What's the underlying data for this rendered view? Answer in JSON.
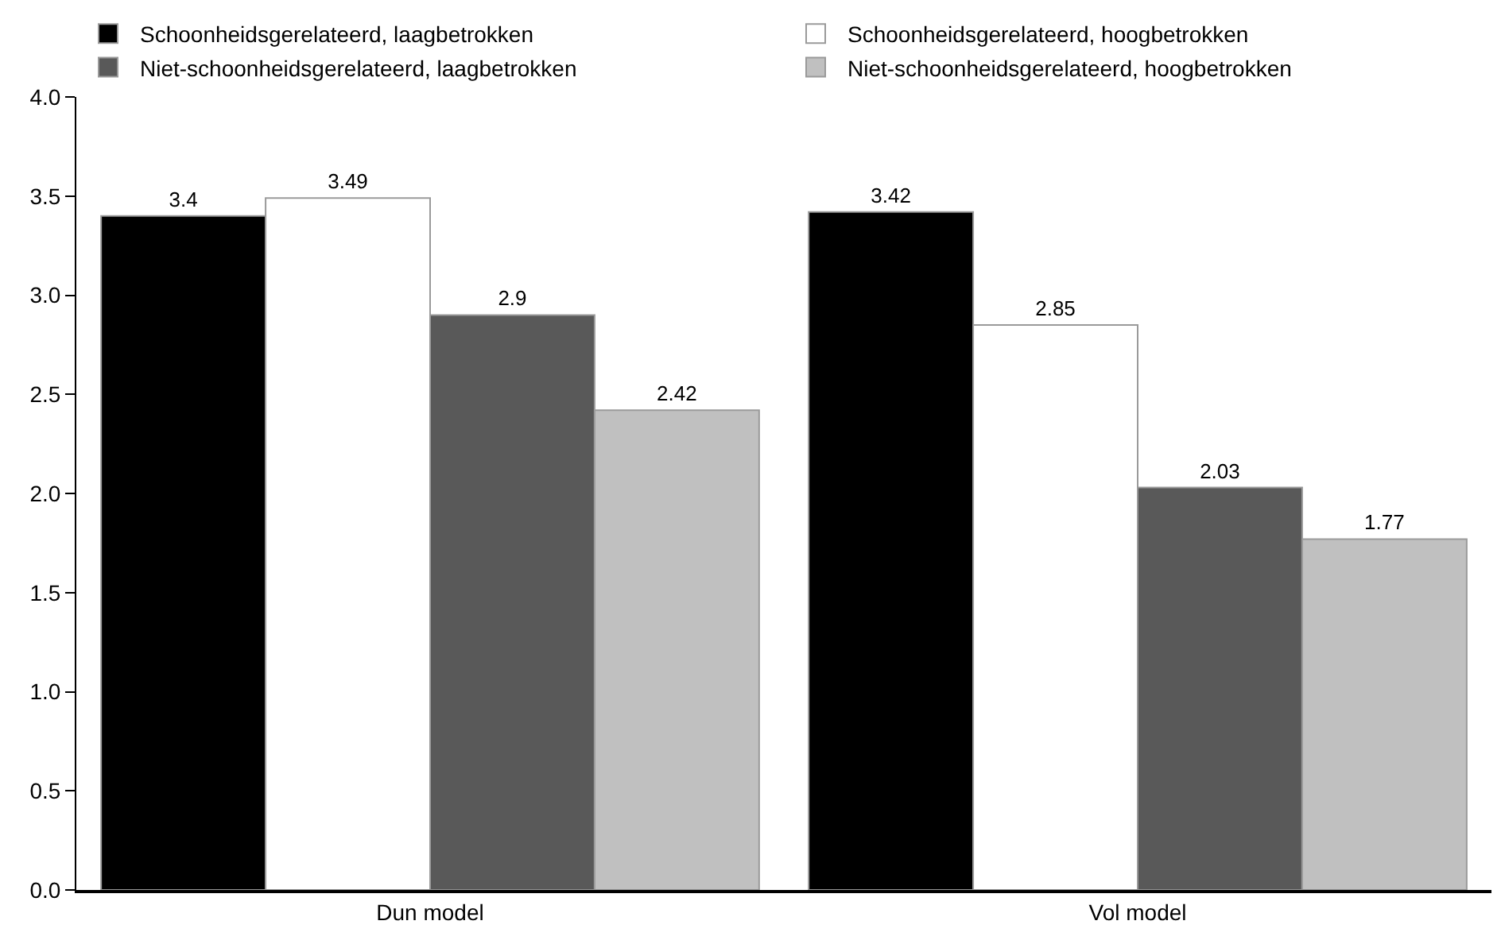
{
  "chart_data": {
    "type": "bar",
    "categories": [
      "Dun model",
      "Vol model"
    ],
    "series": [
      {
        "name": "Schoonheidsgerelateerd, laagbetrokken",
        "color": "#000000",
        "values": [
          3.4,
          3.42
        ]
      },
      {
        "name": "Schoonheidsgerelateerd, hoogbetrokken",
        "color": "#ffffff",
        "values": [
          3.49,
          2.85
        ]
      },
      {
        "name": "Niet-schoonheidsgerelateerd, laagbetrokken",
        "color": "#595959",
        "values": [
          2.9,
          2.03
        ]
      },
      {
        "name": "Niet-schoonheidsgerelateerd, hoogbetrokken",
        "color": "#c0c0c0",
        "values": [
          2.42,
          1.77
        ]
      }
    ],
    "ylim": [
      0,
      4
    ],
    "yticks": [
      {
        "value": 0,
        "label": "0.0"
      },
      {
        "value": 0.5,
        "label": "0.5"
      },
      {
        "value": 1,
        "label": "1.0"
      },
      {
        "value": 1.5,
        "label": "1.5"
      },
      {
        "value": 2,
        "label": "2.0"
      },
      {
        "value": 2.5,
        "label": "2.5"
      },
      {
        "value": 3,
        "label": "3.0"
      },
      {
        "value": 3.5,
        "label": "3.5"
      },
      {
        "value": 4,
        "label": "4.0"
      }
    ],
    "data_labels": true,
    "grid": false,
    "legend": "top"
  }
}
